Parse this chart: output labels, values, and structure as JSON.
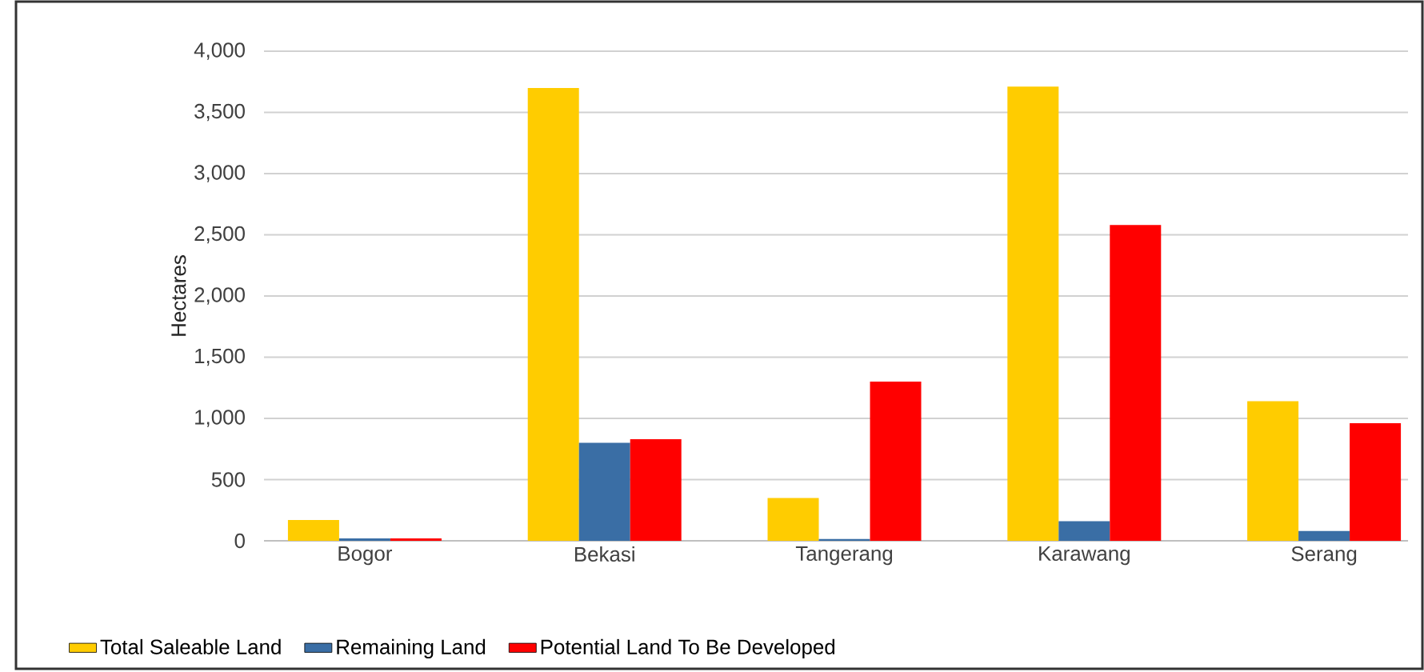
{
  "chart_data": {
    "type": "bar",
    "categories": [
      "Bogor",
      "Bekasi",
      "Tangerang",
      "Karawang",
      "Serang"
    ],
    "series": [
      {
        "name": "Total Saleable Land",
        "color": "#ffcc00",
        "values": [
          170,
          3700,
          350,
          3710,
          1140
        ]
      },
      {
        "name": "Remaining Land",
        "color": "#3a6ea5",
        "values": [
          20,
          800,
          15,
          160,
          80
        ]
      },
      {
        "name": "Potential Land To Be Developed",
        "color": "#ff0000",
        "values": [
          20,
          830,
          1300,
          2580,
          960
        ]
      }
    ],
    "ylabel": "Hectares",
    "ylim": [
      0,
      4000
    ],
    "yticks": [
      {
        "value": 0,
        "label": "0"
      },
      {
        "value": 500,
        "label": "500"
      },
      {
        "value": 1000,
        "label": "1,000"
      },
      {
        "value": 1500,
        "label": "1,500"
      },
      {
        "value": 2000,
        "label": "2,000"
      },
      {
        "value": 2500,
        "label": "2,500"
      },
      {
        "value": 3000,
        "label": "3,000"
      },
      {
        "value": 3500,
        "label": "3,500"
      },
      {
        "value": 4000,
        "label": "4,000"
      }
    ],
    "grid": "y",
    "legend": "bottom"
  }
}
